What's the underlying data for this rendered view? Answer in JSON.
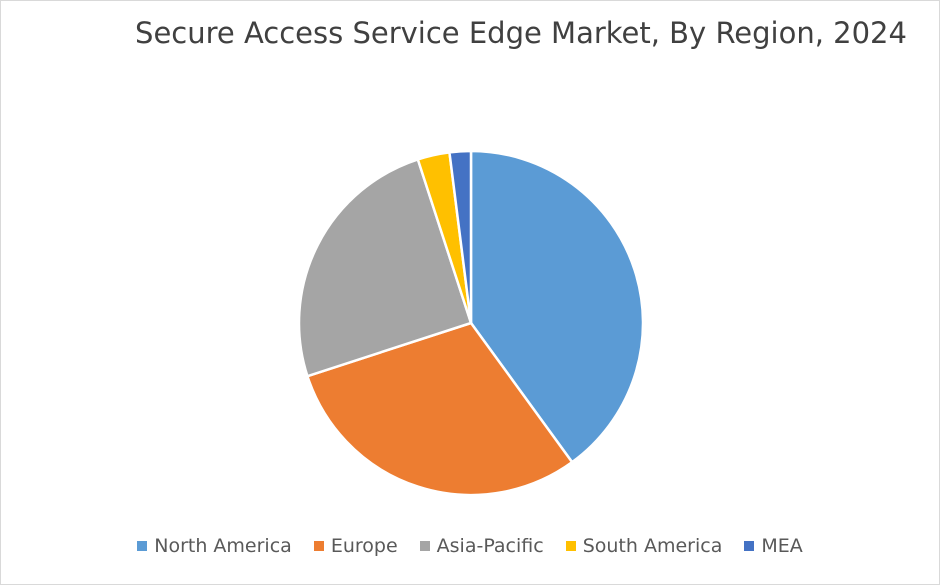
{
  "chart_data": {
    "type": "pie",
    "title": "Secure Access Service Edge Market, By Region, 2024",
    "categories": [
      "North America",
      "Europe",
      "Asia-Pacific",
      "South America",
      "MEA"
    ],
    "values": [
      40,
      30,
      25,
      3,
      2
    ],
    "colors": [
      "#5b9bd5",
      "#ed7d31",
      "#a5a5a5",
      "#ffc000",
      "#4472c4"
    ],
    "legend": "bottom"
  }
}
